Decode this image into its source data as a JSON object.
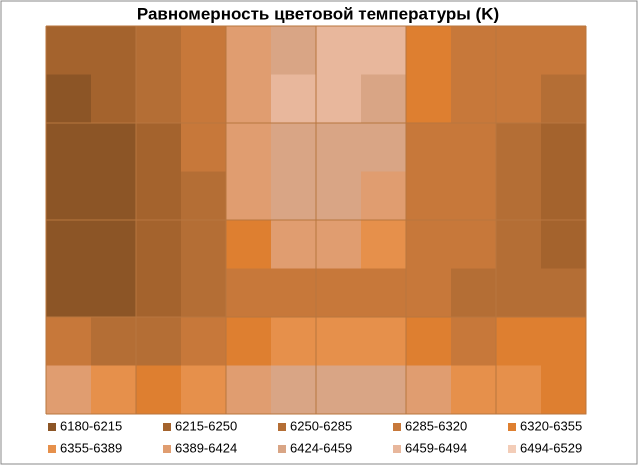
{
  "chart_data": {
    "type": "contour",
    "title": "Равномерность цветовой температуры (K)",
    "levels": [
      6180,
      6215,
      6250,
      6285,
      6320,
      6355,
      6389,
      6424,
      6459,
      6494,
      6529
    ],
    "bands": [
      {
        "name": "6180-6215",
        "color": "#8c5526"
      },
      {
        "name": "6215-6250",
        "color": "#a4632d"
      },
      {
        "name": "6250-6285",
        "color": "#b46e35"
      },
      {
        "name": "6285-6320",
        "color": "#c7783a"
      },
      {
        "name": "6320-6355",
        "color": "#de7f30"
      },
      {
        "name": "6355-6389",
        "color": "#e6904b"
      },
      {
        "name": "6389-6424",
        "color": "#e09d70"
      },
      {
        "name": "6424-6459",
        "color": "#d9a585"
      },
      {
        "name": "6459-6494",
        "color": "#e8b79c"
      },
      {
        "name": "6494-6529",
        "color": "#f3cdb8"
      }
    ],
    "z": [
      [
        6230,
        6240,
        6260,
        6290,
        6400,
        6450,
        6490,
        6470,
        6330,
        6300,
        6310,
        6290
      ],
      [
        6200,
        6230,
        6260,
        6300,
        6420,
        6460,
        6470,
        6440,
        6320,
        6300,
        6290,
        6260
      ],
      [
        6190,
        6210,
        6240,
        6290,
        6420,
        6450,
        6450,
        6430,
        6310,
        6290,
        6270,
        6240
      ],
      [
        6190,
        6200,
        6230,
        6280,
        6400,
        6440,
        6440,
        6400,
        6310,
        6290,
        6260,
        6220
      ],
      [
        6190,
        6200,
        6230,
        6270,
        6330,
        6420,
        6420,
        6360,
        6300,
        6290,
        6260,
        6230
      ],
      [
        6190,
        6200,
        6230,
        6260,
        6290,
        6300,
        6310,
        6300,
        6290,
        6280,
        6280,
        6260
      ],
      [
        6300,
        6280,
        6270,
        6300,
        6340,
        6370,
        6380,
        6360,
        6330,
        6310,
        6320,
        6320
      ],
      [
        6390,
        6360,
        6340,
        6380,
        6410,
        6440,
        6450,
        6430,
        6400,
        6370,
        6360,
        6340
      ]
    ],
    "grid": true
  }
}
